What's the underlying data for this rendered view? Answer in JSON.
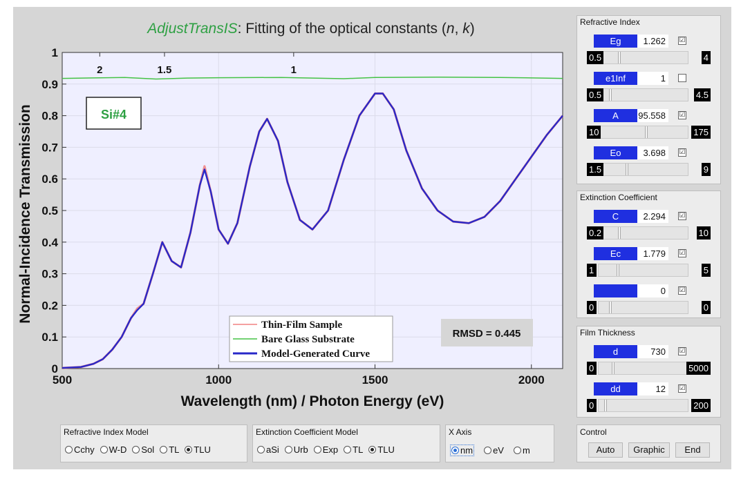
{
  "title": {
    "app": "AdjustTransIS",
    "text": ": Fitting of the optical constants (",
    "n": "n",
    "sep": ", ",
    "k": "k",
    "end": ")"
  },
  "sample_label": "Si#4",
  "rmsd": "RMSD = 0.445",
  "chart_data": {
    "type": "line",
    "xlabel": "Wavelength (nm) / Photon Energy (eV)",
    "ylabel": "Normal-Incidence Transmission",
    "xlim": [
      500,
      2100
    ],
    "ylim": [
      0,
      1
    ],
    "xticks": [
      "500",
      "1000",
      "1500",
      "2000"
    ],
    "yticks": [
      "0",
      "0.1",
      "0.2",
      "0.3",
      "0.4",
      "0.5",
      "0.6",
      "0.7",
      "0.8",
      "0.9",
      "1"
    ],
    "energy_ticks": [
      {
        "label": "2",
        "nm": 620
      },
      {
        "label": "1.5",
        "nm": 827
      },
      {
        "label": "1",
        "nm": 1240
      }
    ],
    "grid": true,
    "legend_position": "bottom-center",
    "series": [
      {
        "name": "Thin-Film Sample",
        "color": "#f08080",
        "x": [
          500,
          560,
          600,
          630,
          660,
          690,
          720,
          740,
          760,
          790,
          820,
          850,
          880,
          910,
          940,
          955,
          975,
          1000,
          1030,
          1060,
          1100,
          1130,
          1155,
          1190,
          1220,
          1260,
          1300,
          1350,
          1400,
          1450,
          1500,
          1525,
          1560,
          1600,
          1650,
          1700,
          1750,
          1800,
          1850,
          1900,
          1950,
          2000,
          2050,
          2100
        ],
        "y": [
          0.002,
          0.005,
          0.015,
          0.03,
          0.06,
          0.1,
          0.16,
          0.19,
          0.205,
          0.3,
          0.4,
          0.34,
          0.32,
          0.43,
          0.58,
          0.64,
          0.56,
          0.44,
          0.395,
          0.46,
          0.64,
          0.75,
          0.79,
          0.72,
          0.59,
          0.47,
          0.44,
          0.5,
          0.66,
          0.8,
          0.87,
          0.87,
          0.82,
          0.69,
          0.57,
          0.5,
          0.465,
          0.46,
          0.48,
          0.53,
          0.6,
          0.67,
          0.74,
          0.8
        ]
      },
      {
        "name": "Bare Glass Substrate",
        "color": "#44c244",
        "x": [
          500,
          700,
          800,
          900,
          1000,
          1200,
          1400,
          1500,
          1700,
          1900,
          2100
        ],
        "y": [
          0.918,
          0.921,
          0.916,
          0.919,
          0.92,
          0.921,
          0.917,
          0.921,
          0.922,
          0.921,
          0.918
        ]
      },
      {
        "name": "Model-Generated Curve",
        "color": "#2828c8",
        "x": [
          500,
          560,
          600,
          630,
          660,
          690,
          720,
          740,
          760,
          790,
          820,
          850,
          880,
          910,
          940,
          955,
          975,
          1000,
          1030,
          1060,
          1100,
          1130,
          1155,
          1190,
          1220,
          1260,
          1300,
          1350,
          1400,
          1450,
          1500,
          1525,
          1560,
          1600,
          1650,
          1700,
          1750,
          1800,
          1850,
          1900,
          1950,
          2000,
          2050,
          2100
        ],
        "y": [
          0.002,
          0.005,
          0.015,
          0.03,
          0.06,
          0.1,
          0.16,
          0.185,
          0.205,
          0.3,
          0.4,
          0.34,
          0.32,
          0.43,
          0.58,
          0.63,
          0.56,
          0.44,
          0.395,
          0.46,
          0.64,
          0.75,
          0.79,
          0.72,
          0.59,
          0.47,
          0.44,
          0.5,
          0.66,
          0.8,
          0.87,
          0.87,
          0.82,
          0.69,
          0.57,
          0.5,
          0.465,
          0.46,
          0.48,
          0.53,
          0.6,
          0.67,
          0.74,
          0.8
        ]
      }
    ]
  },
  "refractive_index_panel": {
    "title": "Refractive Index",
    "params": [
      {
        "label": "Eg",
        "value": "1.262",
        "checked": true,
        "min": "0.5",
        "max": "4",
        "slider": 0.22
      },
      {
        "label": "e1Inf",
        "value": "1",
        "checked": false,
        "min": "0.5",
        "max": "4.5",
        "slider": 0.12
      },
      {
        "label": "A",
        "value": "95.558",
        "checked": true,
        "min": "10",
        "max": "175",
        "slider": 0.52
      },
      {
        "label": "Eo",
        "value": "3.698",
        "checked": true,
        "min": "1.5",
        "max": "9",
        "slider": 0.3
      }
    ]
  },
  "extinction_panel": {
    "title": "Extinction Coefficient",
    "params": [
      {
        "label": "C",
        "value": "2.294",
        "checked": true,
        "min": "0.2",
        "max": "10",
        "slider": 0.22
      },
      {
        "label": "Ec",
        "value": "1.779",
        "checked": true,
        "min": "1",
        "max": "5",
        "slider": 0.2
      },
      {
        "label": "",
        "value": "0",
        "checked": true,
        "min": "0",
        "max": "0",
        "slider": 0.12
      }
    ]
  },
  "thickness_panel": {
    "title": "Film Thickness",
    "params": [
      {
        "label": "d",
        "value": "730",
        "checked": true,
        "min": "0",
        "max": "5000",
        "slider": 0.15
      },
      {
        "label": "dd",
        "value": "12",
        "checked": true,
        "min": "0",
        "max": "200",
        "slider": 0.06
      }
    ]
  },
  "refractive_model": {
    "title": "Refractive Index Model",
    "options": [
      "Cchy",
      "W-D",
      "Sol",
      "TL",
      "TLU"
    ],
    "selected": "TLU"
  },
  "extinction_model": {
    "title": "Extinction Coefficient Model",
    "options": [
      "aSi",
      "Urb",
      "Exp",
      "TL",
      "TLU"
    ],
    "selected": "TLU"
  },
  "x_axis": {
    "title": "X Axis",
    "options": [
      "nm",
      "eV",
      "m"
    ],
    "selected": "nm"
  },
  "control": {
    "title": "Control",
    "buttons": [
      "Auto",
      "Graphic",
      "End"
    ]
  },
  "check_mark": "☑"
}
